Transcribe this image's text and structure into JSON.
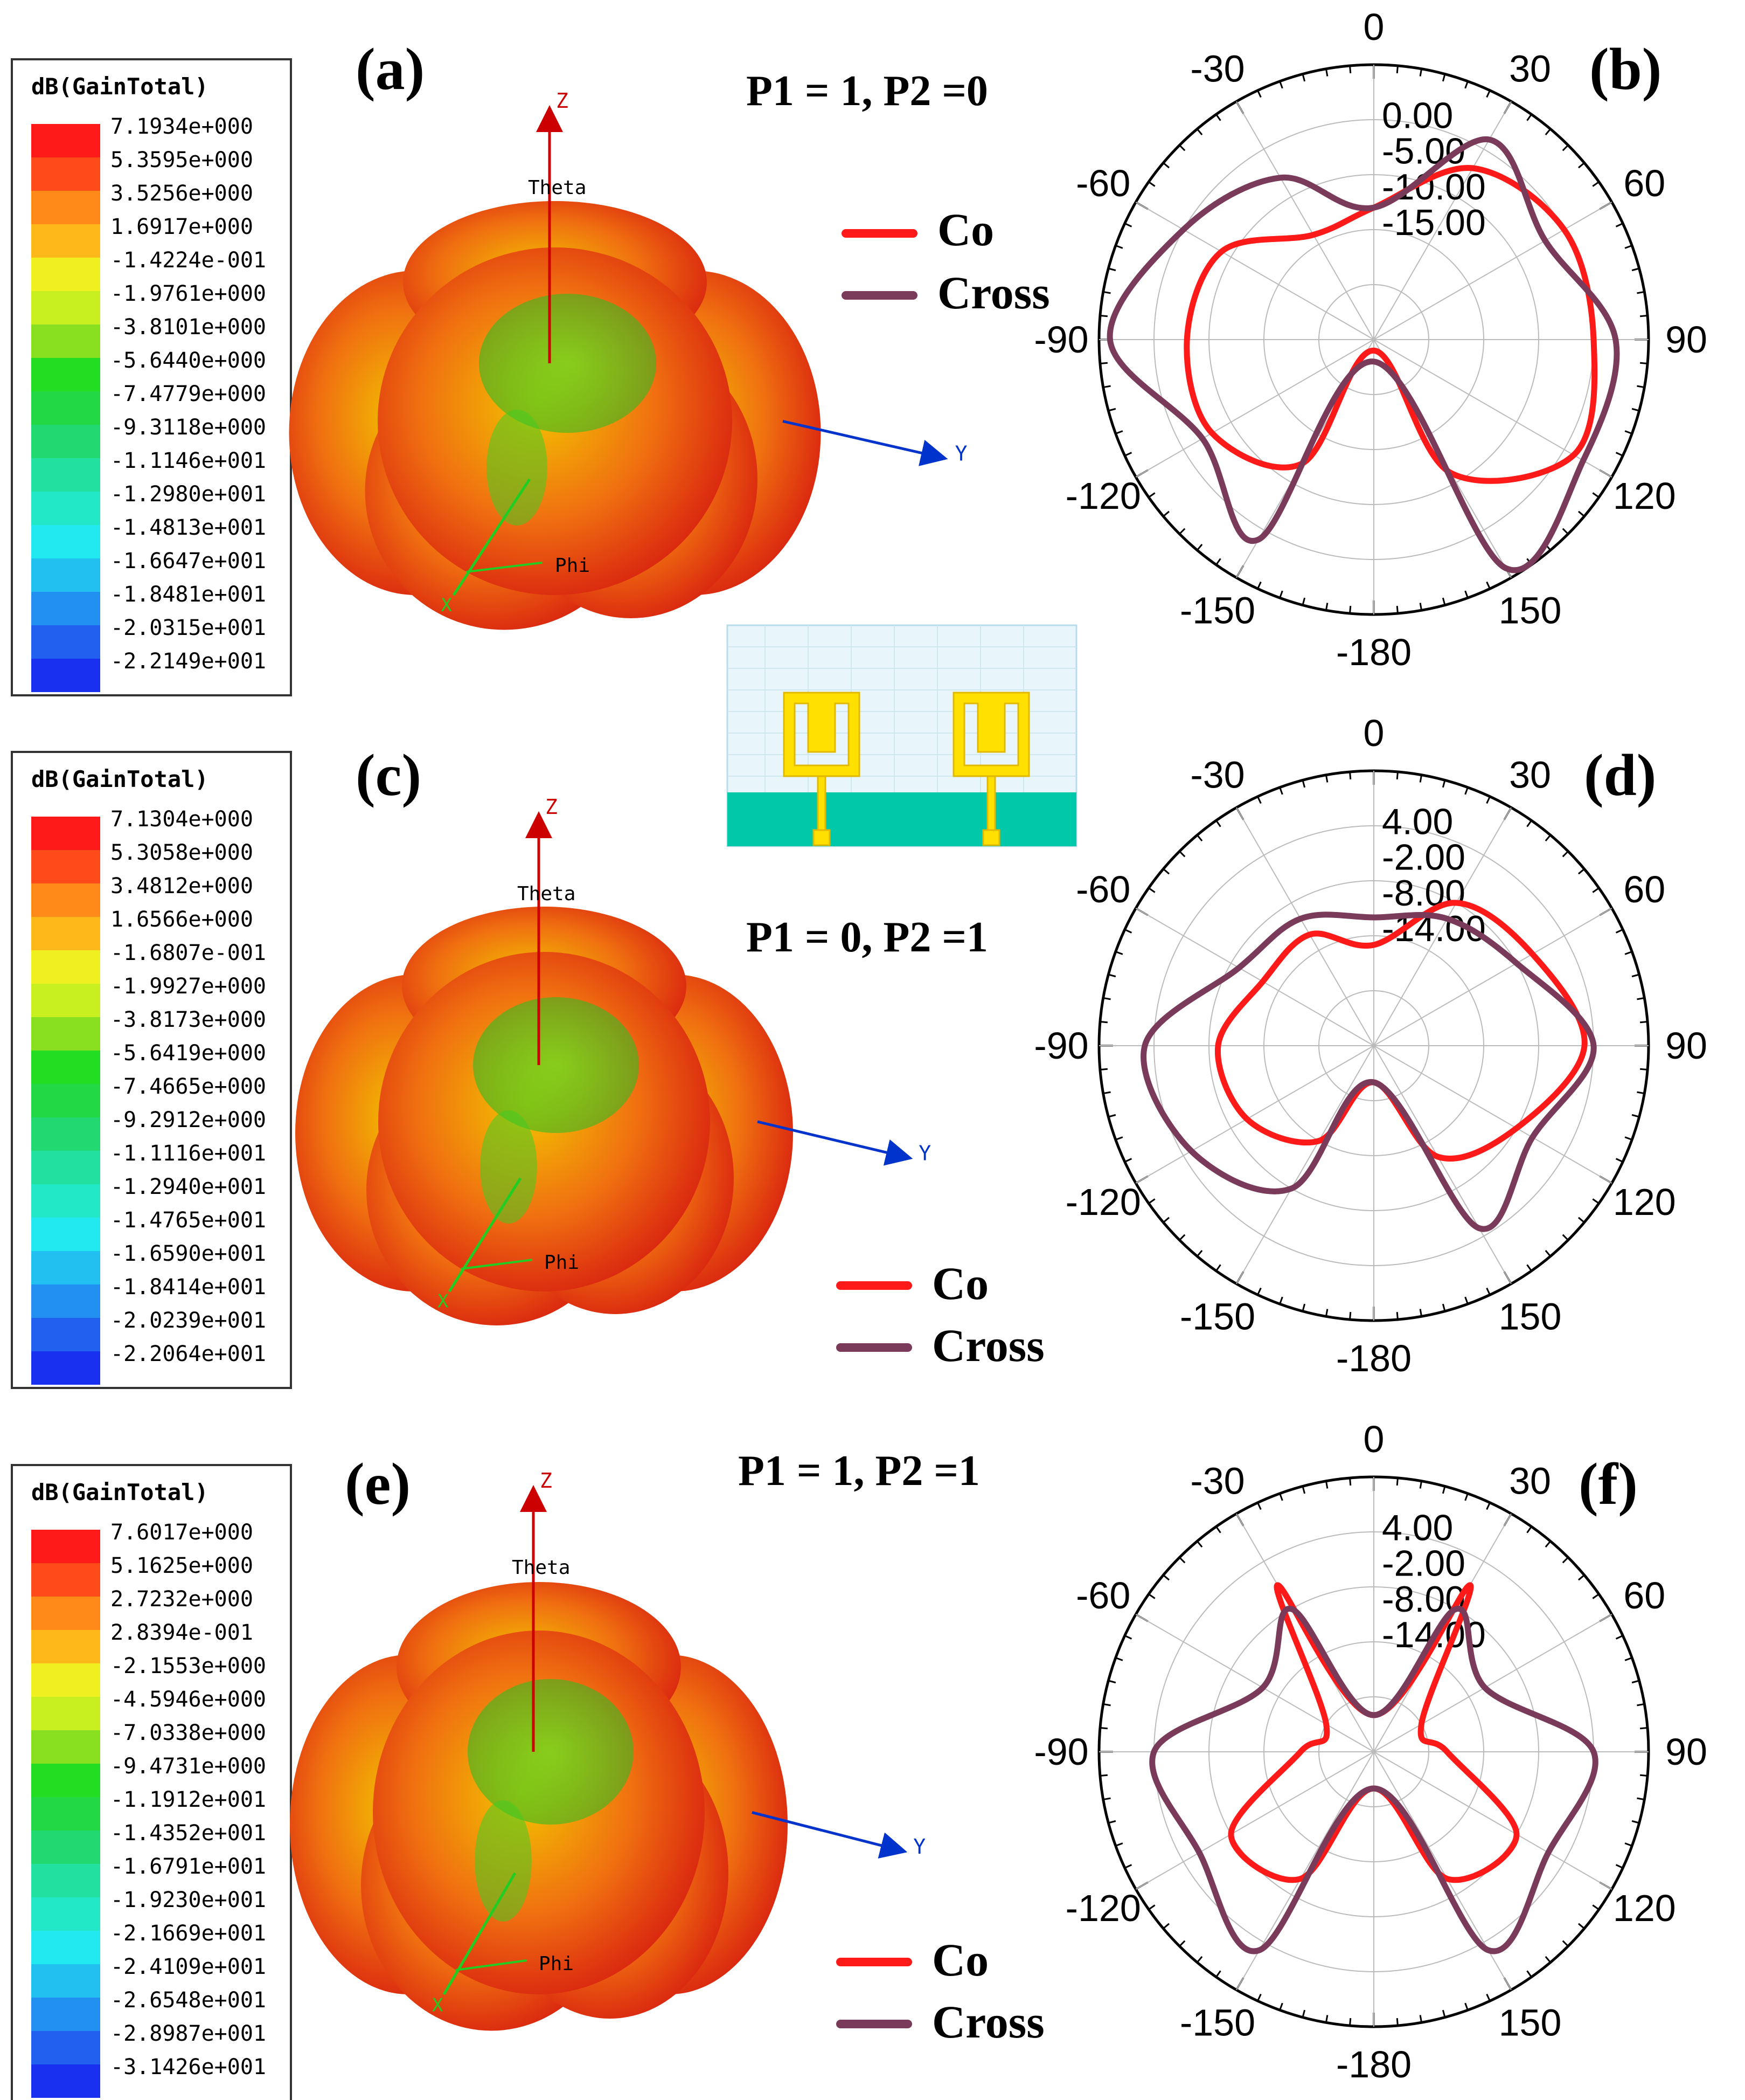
{
  "colors": {
    "co": "#ff1a1a",
    "cross": "#7a3a5a",
    "axis_blue": "#0033cc",
    "axis_red": "#cc0000",
    "axis_green": "#22cc22",
    "substrate": "#00c8a8",
    "patch": "#ffe000",
    "bg_panel": "#e8f6fb"
  },
  "panels": [
    {
      "id": "a",
      "label": "(a)",
      "legend_title": "dB(GainTotal)",
      "levels": [
        "7.1934e+000",
        "5.3595e+000",
        "3.5256e+000",
        "1.6917e+000",
        "-1.4224e-001",
        "-1.9761e+000",
        "-3.8101e+000",
        "-5.6440e+000",
        "-7.4779e+000",
        "-9.3118e+000",
        "-1.1146e+001",
        "-1.2980e+001",
        "-1.4813e+001",
        "-1.6647e+001",
        "-1.8481e+001",
        "-2.0315e+001",
        "-2.2149e+001"
      ],
      "axis_z": "Z",
      "axis_y": "Y",
      "axis_theta": "Theta",
      "axis_phi": "Phi",
      "axis_x": "X"
    },
    {
      "id": "c",
      "label": "(c)",
      "legend_title": "dB(GainTotal)",
      "levels": [
        "7.1304e+000",
        "5.3058e+000",
        "3.4812e+000",
        "1.6566e+000",
        "-1.6807e-001",
        "-1.9927e+000",
        "-3.8173e+000",
        "-5.6419e+000",
        "-7.4665e+000",
        "-9.2912e+000",
        "-1.1116e+001",
        "-1.2940e+001",
        "-1.4765e+001",
        "-1.6590e+001",
        "-1.8414e+001",
        "-2.0239e+001",
        "-2.2064e+001"
      ],
      "axis_z": "Z",
      "axis_y": "Y",
      "axis_theta": "Theta",
      "axis_phi": "Phi",
      "axis_x": "X"
    },
    {
      "id": "e",
      "label": "(e)",
      "legend_title": "dB(GainTotal)",
      "levels": [
        "7.6017e+000",
        "5.1625e+000",
        "2.7232e+000",
        "2.8394e-001",
        "-2.1553e+000",
        "-4.5946e+000",
        "-7.0338e+000",
        "-9.4731e+000",
        "-1.1912e+001",
        "-1.4352e+001",
        "-1.6791e+001",
        "-1.9230e+001",
        "-2.1669e+001",
        "-2.4109e+001",
        "-2.6548e+001",
        "-2.8987e+001",
        "-3.1426e+001"
      ],
      "axis_z": "Z",
      "axis_y": "Y",
      "axis_theta": "Theta",
      "axis_phi": "Phi",
      "axis_x": "X"
    }
  ],
  "excitations": [
    "P1 = 1, P2 =0",
    "P1 = 0, P2 =1",
    "P1 = 1, P2 =1"
  ],
  "legend": {
    "co": "Co",
    "cross": "Cross"
  },
  "chart_data": [
    {
      "type": "polar",
      "label": "(b)",
      "angle_ticks": [
        "0",
        "30",
        "60",
        "90",
        "120",
        "150",
        "-180",
        "-150",
        "-120",
        "-90",
        "-60",
        "-30"
      ],
      "radial_ticks": [
        "0.00",
        "-5.00",
        "-10.00",
        "-15.00"
      ],
      "radial_range": [
        -20,
        5
      ],
      "angles_deg": [
        0,
        30,
        60,
        90,
        120,
        150,
        180,
        -150,
        -120,
        -90,
        -60,
        -30
      ],
      "series": [
        {
          "name": "Co",
          "values": [
            -8,
            -2,
            0,
            0,
            1,
            -6,
            -19,
            -7,
            -3,
            -3,
            -4,
            -9
          ]
        },
        {
          "name": "Cross",
          "values": [
            -8,
            1,
            -2,
            2,
            2,
            4,
            -18,
            1,
            -2,
            4,
            0,
            -3
          ]
        }
      ]
    },
    {
      "type": "polar",
      "label": "(d)",
      "angle_ticks": [
        "0",
        "30",
        "60",
        "90",
        "120",
        "150",
        "-180",
        "-150",
        "-120",
        "-90",
        "-60",
        "-30"
      ],
      "radial_ticks": [
        "4.00",
        "-2.00",
        "-8.00",
        "-14.00"
      ],
      "radial_range": [
        -20,
        10
      ],
      "angles_deg": [
        0,
        30,
        60,
        90,
        120,
        150,
        180,
        -150,
        -120,
        -90,
        -60,
        -30
      ],
      "series": [
        {
          "name": "Co",
          "values": [
            -9,
            -2,
            0,
            3,
            -2,
            -6,
            -16,
            -8,
            -4,
            -3,
            -6,
            -6
          ]
        },
        {
          "name": "Cross",
          "values": [
            -6,
            -4,
            -2,
            4,
            0,
            3,
            -16,
            -2,
            3,
            5,
            -3,
            -4
          ]
        }
      ]
    },
    {
      "type": "polar",
      "label": "(f)",
      "angle_ticks": [
        "0",
        "30",
        "60",
        "90",
        "120",
        "150",
        "-180",
        "-150",
        "-120",
        "-90",
        "-60",
        "-30"
      ],
      "radial_ticks": [
        "4.00",
        "-2.00",
        "-8.00",
        "-14.00"
      ],
      "radial_range": [
        -20,
        10
      ],
      "angles_deg": [
        0,
        30,
        60,
        90,
        120,
        150,
        180,
        -150,
        -120,
        -90,
        -60,
        -30
      ],
      "series": [
        {
          "name": "Co",
          "values": [
            -16,
            1,
            -14,
            -12,
            -2,
            -4,
            -16,
            -4,
            -2,
            -12,
            -14,
            1
          ]
        },
        {
          "name": "Cross",
          "values": [
            -16,
            -2,
            -6,
            4,
            2,
            5,
            -16,
            5,
            2,
            4,
            -6,
            -2
          ]
        }
      ]
    }
  ]
}
